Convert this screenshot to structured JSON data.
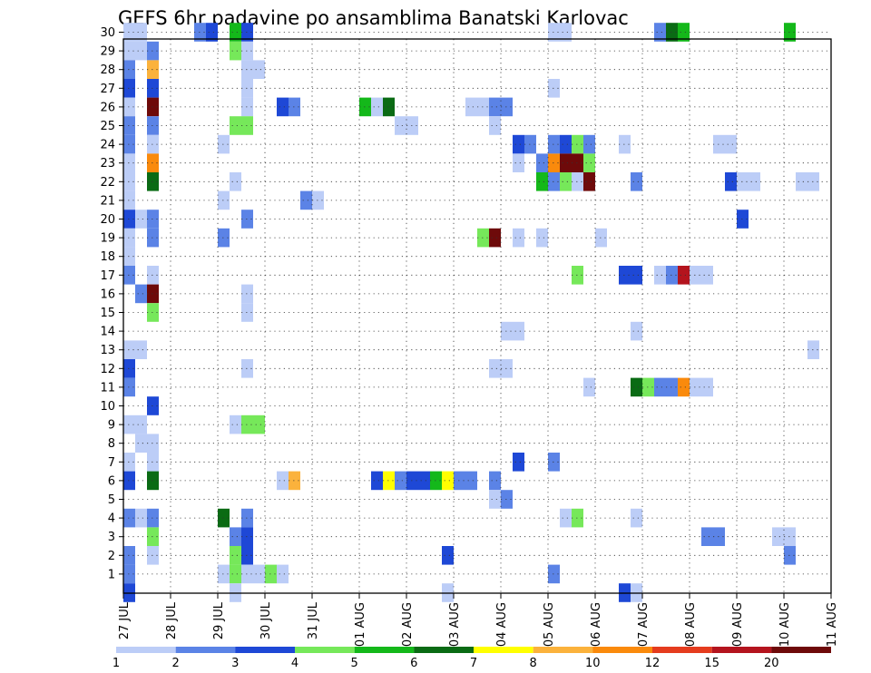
{
  "chart_data": {
    "type": "heatmap",
    "title": "GEFS 6hr padavine po ansamblima Banatski Karlovac",
    "xlabel": "",
    "ylabel": "",
    "x_ticks": [
      "27 JUL",
      "28 JUL",
      "29 JUL",
      "30 JUL",
      "31 JUL",
      "01 AUG",
      "02 AUG",
      "03 AUG",
      "04 AUG",
      "05 AUG",
      "06 AUG",
      "07 AUG",
      "08 AUG",
      "09 AUG",
      "10 AUG",
      "11 AUG"
    ],
    "y_ticks": [
      "1",
      "2",
      "3",
      "4",
      "5",
      "6",
      "7",
      "8",
      "9",
      "10",
      "11",
      "12",
      "13",
      "14",
      "15",
      "16",
      "17",
      "18",
      "19",
      "20",
      "21",
      "22",
      "23",
      "24",
      "25",
      "26",
      "27",
      "28",
      "29",
      "30"
    ],
    "x_unit": "6-hour step from 27 JUL 00z (0-60)",
    "y_unit": "ensemble member",
    "ylim": [
      0,
      30
    ],
    "grid": true,
    "colorbar": {
      "labels": [
        "1",
        "2",
        "3",
        "4",
        "5",
        "6",
        "7",
        "8",
        "10",
        "12",
        "15",
        "20"
      ],
      "colors": [
        "#bccdf7",
        "#5b83e6",
        "#1e48d6",
        "#76e85a",
        "#14b81a",
        "#0a6b14",
        "#ffff00",
        "#fbb23c",
        "#fa8a0c",
        "#e53c1e",
        "#b4141e",
        "#6e0a0a"
      ]
    },
    "cells_note": "each cell: [time step, member, colour class 1-12]",
    "cells": [
      [
        0,
        30,
        1
      ],
      [
        1,
        30,
        1
      ],
      [
        6,
        30,
        2
      ],
      [
        7,
        30,
        3
      ],
      [
        9,
        30,
        5
      ],
      [
        10,
        30,
        3
      ],
      [
        36,
        30,
        1
      ],
      [
        37,
        30,
        1
      ],
      [
        45,
        30,
        2
      ],
      [
        46,
        30,
        6
      ],
      [
        47,
        30,
        5
      ],
      [
        56,
        30,
        5
      ],
      [
        60,
        30,
        3
      ],
      [
        0,
        29,
        1
      ],
      [
        1,
        29,
        1
      ],
      [
        2,
        29,
        2
      ],
      [
        9,
        29,
        4
      ],
      [
        10,
        29,
        1
      ],
      [
        0,
        28,
        2
      ],
      [
        2,
        28,
        8
      ],
      [
        10,
        28,
        1
      ],
      [
        11,
        28,
        1
      ],
      [
        0,
        27,
        3
      ],
      [
        2,
        27,
        3
      ],
      [
        10,
        27,
        1
      ],
      [
        36,
        27,
        1
      ],
      [
        0,
        26,
        1
      ],
      [
        2,
        26,
        12
      ],
      [
        10,
        26,
        1
      ],
      [
        13,
        26,
        3
      ],
      [
        14,
        26,
        2
      ],
      [
        20,
        26,
        5
      ],
      [
        21,
        26,
        1
      ],
      [
        22,
        26,
        6
      ],
      [
        29,
        26,
        1
      ],
      [
        30,
        26,
        1
      ],
      [
        31,
        26,
        2
      ],
      [
        32,
        26,
        2
      ],
      [
        0,
        25,
        2
      ],
      [
        2,
        25,
        2
      ],
      [
        9,
        25,
        4
      ],
      [
        10,
        25,
        4
      ],
      [
        23,
        25,
        1
      ],
      [
        24,
        25,
        1
      ],
      [
        31,
        25,
        1
      ],
      [
        0,
        24,
        2
      ],
      [
        2,
        24,
        1
      ],
      [
        8,
        24,
        1
      ],
      [
        33,
        24,
        3
      ],
      [
        34,
        24,
        2
      ],
      [
        36,
        24,
        2
      ],
      [
        37,
        24,
        3
      ],
      [
        38,
        24,
        4
      ],
      [
        39,
        24,
        2
      ],
      [
        42,
        24,
        1
      ],
      [
        50,
        24,
        1
      ],
      [
        51,
        24,
        1
      ],
      [
        0,
        23,
        1
      ],
      [
        2,
        23,
        9
      ],
      [
        33,
        23,
        1
      ],
      [
        35,
        23,
        2
      ],
      [
        36,
        23,
        9
      ],
      [
        37,
        23,
        12
      ],
      [
        38,
        23,
        12
      ],
      [
        39,
        23,
        4
      ],
      [
        0,
        22,
        1
      ],
      [
        2,
        22,
        6
      ],
      [
        9,
        22,
        1
      ],
      [
        35,
        22,
        5
      ],
      [
        36,
        22,
        2
      ],
      [
        37,
        22,
        4
      ],
      [
        38,
        22,
        1
      ],
      [
        39,
        22,
        12
      ],
      [
        43,
        22,
        2
      ],
      [
        51,
        22,
        3
      ],
      [
        52,
        22,
        1
      ],
      [
        53,
        22,
        1
      ],
      [
        57,
        22,
        1
      ],
      [
        58,
        22,
        1
      ],
      [
        60,
        22,
        1
      ],
      [
        0,
        21,
        1
      ],
      [
        8,
        21,
        1
      ],
      [
        15,
        21,
        2
      ],
      [
        16,
        21,
        1
      ],
      [
        0,
        20,
        3
      ],
      [
        1,
        20,
        1
      ],
      [
        2,
        20,
        2
      ],
      [
        10,
        20,
        2
      ],
      [
        52,
        20,
        3
      ],
      [
        0,
        19,
        1
      ],
      [
        2,
        19,
        2
      ],
      [
        8,
        19,
        2
      ],
      [
        30,
        19,
        4
      ],
      [
        31,
        19,
        12
      ],
      [
        33,
        19,
        1
      ],
      [
        35,
        19,
        1
      ],
      [
        40,
        19,
        1
      ],
      [
        0,
        18,
        1
      ],
      [
        0,
        17,
        2
      ],
      [
        2,
        17,
        1
      ],
      [
        38,
        17,
        4
      ],
      [
        42,
        17,
        3
      ],
      [
        43,
        17,
        3
      ],
      [
        45,
        17,
        1
      ],
      [
        46,
        17,
        2
      ],
      [
        47,
        17,
        11
      ],
      [
        48,
        17,
        1
      ],
      [
        49,
        17,
        1
      ],
      [
        1,
        16,
        2
      ],
      [
        2,
        16,
        12
      ],
      [
        10,
        16,
        1
      ],
      [
        2,
        15,
        4
      ],
      [
        10,
        15,
        1
      ],
      [
        32,
        14,
        1
      ],
      [
        33,
        14,
        1
      ],
      [
        43,
        14,
        1
      ],
      [
        0,
        13,
        1
      ],
      [
        1,
        13,
        1
      ],
      [
        58,
        13,
        1
      ],
      [
        60,
        13,
        1
      ],
      [
        0,
        12,
        3
      ],
      [
        10,
        12,
        1
      ],
      [
        31,
        12,
        1
      ],
      [
        32,
        12,
        1
      ],
      [
        0,
        11,
        2
      ],
      [
        39,
        11,
        1
      ],
      [
        43,
        11,
        6
      ],
      [
        44,
        11,
        4
      ],
      [
        45,
        11,
        2
      ],
      [
        46,
        11,
        2
      ],
      [
        47,
        11,
        9
      ],
      [
        48,
        11,
        1
      ],
      [
        49,
        11,
        1
      ],
      [
        2,
        10,
        3
      ],
      [
        0,
        9,
        1
      ],
      [
        1,
        9,
        1
      ],
      [
        9,
        9,
        1
      ],
      [
        10,
        9,
        4
      ],
      [
        11,
        9,
        4
      ],
      [
        1,
        8,
        1
      ],
      [
        2,
        8,
        1
      ],
      [
        0,
        7,
        1
      ],
      [
        2,
        7,
        1
      ],
      [
        33,
        7,
        3
      ],
      [
        36,
        7,
        2
      ],
      [
        0,
        6,
        3
      ],
      [
        2,
        6,
        6
      ],
      [
        13,
        6,
        1
      ],
      [
        14,
        6,
        8
      ],
      [
        21,
        6,
        3
      ],
      [
        22,
        6,
        7
      ],
      [
        23,
        6,
        2
      ],
      [
        24,
        6,
        3
      ],
      [
        25,
        6,
        3
      ],
      [
        26,
        6,
        5
      ],
      [
        27,
        6,
        7
      ],
      [
        28,
        6,
        2
      ],
      [
        29,
        6,
        2
      ],
      [
        31,
        6,
        2
      ],
      [
        31,
        5,
        1
      ],
      [
        32,
        5,
        2
      ],
      [
        0,
        4,
        2
      ],
      [
        1,
        4,
        1
      ],
      [
        2,
        4,
        2
      ],
      [
        8,
        4,
        6
      ],
      [
        10,
        4,
        2
      ],
      [
        37,
        4,
        1
      ],
      [
        38,
        4,
        4
      ],
      [
        43,
        4,
        1
      ],
      [
        60,
        4,
        5
      ],
      [
        2,
        3,
        4
      ],
      [
        9,
        3,
        2
      ],
      [
        10,
        3,
        3
      ],
      [
        49,
        3,
        2
      ],
      [
        50,
        3,
        2
      ],
      [
        55,
        3,
        1
      ],
      [
        56,
        3,
        1
      ],
      [
        0,
        2,
        2
      ],
      [
        2,
        2,
        1
      ],
      [
        9,
        2,
        4
      ],
      [
        10,
        2,
        3
      ],
      [
        27,
        2,
        3
      ],
      [
        56,
        2,
        2
      ],
      [
        0,
        1,
        2
      ],
      [
        8,
        1,
        1
      ],
      [
        9,
        1,
        4
      ],
      [
        10,
        1,
        1
      ],
      [
        11,
        1,
        1
      ],
      [
        12,
        1,
        4
      ],
      [
        13,
        1,
        1
      ],
      [
        36,
        1,
        2
      ],
      [
        0,
        0,
        3
      ],
      [
        9,
        0,
        1
      ],
      [
        27,
        0,
        1
      ],
      [
        42,
        0,
        3
      ],
      [
        43,
        0,
        1
      ]
    ]
  }
}
